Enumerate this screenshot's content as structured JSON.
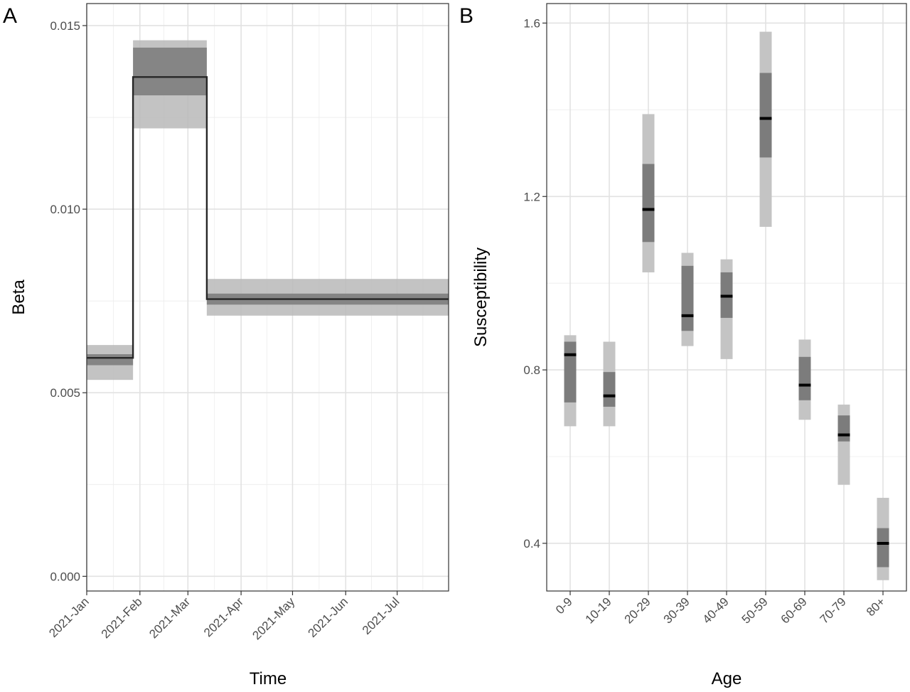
{
  "chart_data": [
    {
      "panel_label": "A",
      "type": "line",
      "xlabel": "Time",
      "ylabel": "Beta",
      "x_range": [
        "2021-01-01",
        "2021-07-31"
      ],
      "ylim": [
        -0.0004,
        0.0156
      ],
      "x_ticks": [
        {
          "date": "2021-01-01",
          "label": "2021-Jan"
        },
        {
          "date": "2021-02-01",
          "label": "2021-Feb"
        },
        {
          "date": "2021-03-01",
          "label": "2021-Mar"
        },
        {
          "date": "2021-04-01",
          "label": "2021-Apr"
        },
        {
          "date": "2021-05-01",
          "label": "2021-May"
        },
        {
          "date": "2021-06-01",
          "label": "2021-Jun"
        },
        {
          "date": "2021-07-01",
          "label": "2021-Jul"
        }
      ],
      "y_ticks": [
        {
          "value": 0.0,
          "label": "0.000"
        },
        {
          "value": 0.005,
          "label": "0.005"
        },
        {
          "value": 0.01,
          "label": "0.010"
        },
        {
          "value": 0.015,
          "label": "0.015"
        }
      ],
      "grid": true,
      "segments": [
        {
          "start": "2021-01-01",
          "end": "2021-01-28",
          "median": 0.00595,
          "inner": [
            0.00575,
            0.00605
          ],
          "outer": [
            0.00535,
            0.0063
          ]
        },
        {
          "start": "2021-01-28",
          "end": "2021-03-12",
          "median": 0.0136,
          "inner": [
            0.0131,
            0.0144
          ],
          "outer": [
            0.0122,
            0.0146
          ]
        },
        {
          "start": "2021-03-12",
          "end": "2021-07-31",
          "median": 0.00755,
          "inner": [
            0.0074,
            0.0077
          ],
          "outer": [
            0.0071,
            0.0081
          ]
        }
      ]
    },
    {
      "panel_label": "B",
      "type": "interval",
      "xlabel": "Age",
      "ylabel": "Susceptibility",
      "categories": [
        "0-9",
        "10-19",
        "20-29",
        "30-39",
        "40-49",
        "50-59",
        "60-69",
        "70-79",
        "80+"
      ],
      "ylim": [
        0.29,
        1.645
      ],
      "y_ticks": [
        {
          "value": 0.4,
          "label": "0.4"
        },
        {
          "value": 0.8,
          "label": "0.8"
        },
        {
          "value": 1.2,
          "label": "1.2"
        },
        {
          "value": 1.6,
          "label": "1.6"
        }
      ],
      "grid": true,
      "median": [
        0.835,
        0.74,
        1.17,
        0.925,
        0.97,
        1.38,
        0.765,
        0.65,
        0.4
      ],
      "inner_low": [
        0.725,
        0.715,
        1.095,
        0.89,
        0.92,
        1.29,
        0.73,
        0.635,
        0.345
      ],
      "inner_high": [
        0.865,
        0.795,
        1.275,
        1.04,
        1.025,
        1.485,
        0.83,
        0.695,
        0.435
      ],
      "outer_low": [
        0.67,
        0.67,
        1.025,
        0.855,
        0.825,
        1.13,
        0.685,
        0.535,
        0.315
      ],
      "outer_high": [
        0.88,
        0.865,
        1.39,
        1.07,
        1.055,
        1.58,
        0.87,
        0.72,
        0.505
      ]
    }
  ]
}
